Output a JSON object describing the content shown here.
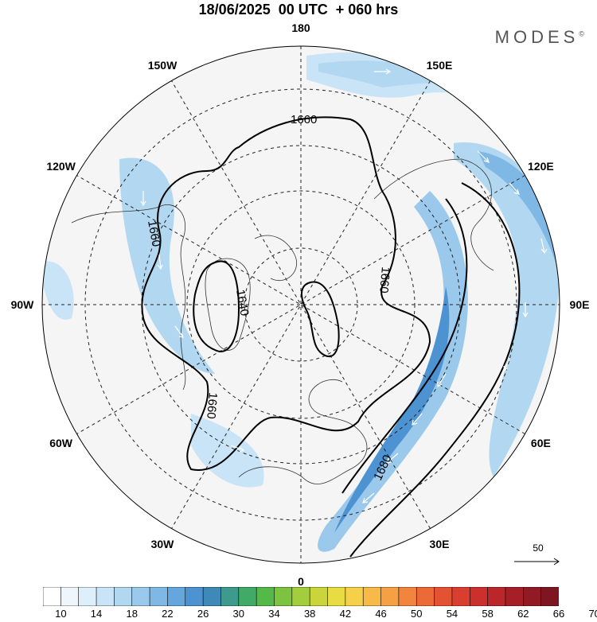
{
  "title": "18/06/2025  00 UTC  + 060 hrs",
  "brand": {
    "text": "MODES",
    "mark": "©"
  },
  "longitude_labels": [
    {
      "text": "180",
      "lon": 180
    },
    {
      "text": "150E",
      "lon": 150
    },
    {
      "text": "120E",
      "lon": 120
    },
    {
      "text": "90E",
      "lon": 90
    },
    {
      "text": "60E",
      "lon": 60
    },
    {
      "text": "30E",
      "lon": 30
    },
    {
      "text": "0",
      "lon": 0
    },
    {
      "text": "30W",
      "lon": -30
    },
    {
      "text": "60W",
      "lon": -60
    },
    {
      "text": "90W",
      "lon": -90
    },
    {
      "text": "120W",
      "lon": -120
    },
    {
      "text": "150W",
      "lon": -150
    }
  ],
  "contour_labels": [
    {
      "text": "1660",
      "note": "north"
    },
    {
      "text": "1660",
      "note": "west"
    },
    {
      "text": "1660",
      "note": "east"
    },
    {
      "text": "1660",
      "note": "southwest"
    },
    {
      "text": "1640",
      "note": "centre"
    },
    {
      "text": "1680",
      "note": "southeast"
    }
  ],
  "reference_vector": {
    "label": "50"
  },
  "colorbar": {
    "labels": [
      "10",
      "14",
      "18",
      "22",
      "26",
      "30",
      "34",
      "38",
      "42",
      "46",
      "50",
      "54",
      "58",
      "62",
      "66",
      "70"
    ],
    "colors": [
      "#ffffff",
      "#eef6fc",
      "#ddeffa",
      "#c9e4f6",
      "#b2d7f1",
      "#9ac9ec",
      "#7fb8e4",
      "#65a6dc",
      "#4d93d2",
      "#3f89b8",
      "#3f9a8e",
      "#41aa66",
      "#55b94a",
      "#7cc43f",
      "#a3cd3c",
      "#c9d53b",
      "#e9dc43",
      "#f5d04a",
      "#f7ba48",
      "#f5a042",
      "#f2853d",
      "#ec6a38",
      "#e45234",
      "#d93f30",
      "#cc302d",
      "#ba262a",
      "#a61f27",
      "#921a24",
      "#7e1621"
    ]
  }
}
